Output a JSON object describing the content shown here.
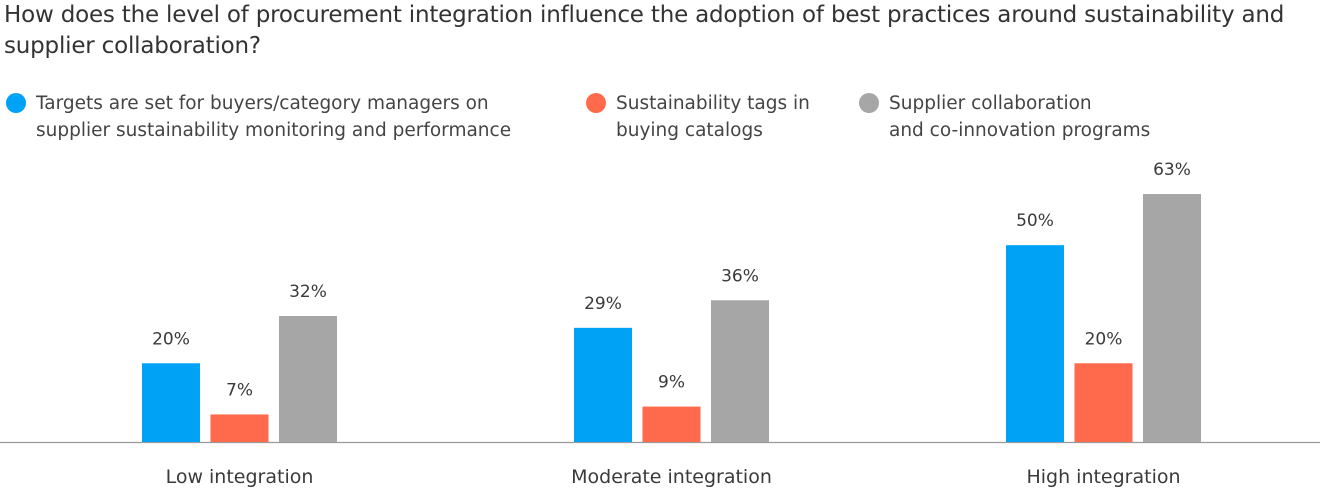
{
  "chart_data": {
    "type": "bar",
    "title": "How does the level of procurement integration influence the adoption of best practices around sustainability and supplier collaboration?",
    "categories": [
      "Low integration",
      "Moderate integration",
      "High integration"
    ],
    "series": [
      {
        "name": "Targets are set for buyers/category managers on\nsupplier sustainability monitoring and performance",
        "color": "#00a2f5",
        "values": [
          20,
          29,
          50
        ],
        "labels": [
          "20%",
          "29%",
          "50%"
        ]
      },
      {
        "name": "Sustainability tags in\nbuying catalogs",
        "color": "#ff6a4d",
        "values": [
          7,
          9,
          20
        ],
        "labels": [
          "7%",
          "9%",
          "20%"
        ]
      },
      {
        "name": "Supplier collaboration\nand co-innovation programs",
        "color": "#a6a6a6",
        "values": [
          32,
          36,
          63
        ],
        "labels": [
          "32%",
          "36%",
          "63%"
        ]
      }
    ],
    "xlabel": "",
    "ylabel": "",
    "ylim": [
      0,
      70
    ],
    "grid": false,
    "legend_placement": "top"
  }
}
